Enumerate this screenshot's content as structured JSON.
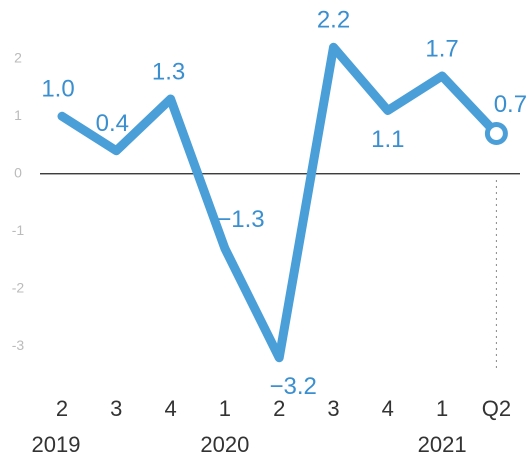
{
  "chart_data": {
    "type": "line",
    "categories": [
      "2",
      "3",
      "4",
      "1",
      "2",
      "3",
      "4",
      "1",
      "Q2"
    ],
    "years": [
      "2019",
      "2020",
      "2021"
    ],
    "series": [
      {
        "color": "#4a9fd8",
        "values": [
          1.0,
          0.4,
          1.3,
          -1.3,
          -3.2,
          2.2,
          1.1,
          1.7,
          0.7
        ],
        "value_labels": [
          "1.0",
          "0.4",
          "1.3",
          "−1.3",
          "−3.2",
          "2.2",
          "1.1",
          "1.7",
          "0.7"
        ]
      }
    ],
    "ylim": [
      -3.5,
      2.5
    ],
    "yticks": [
      2,
      1,
      0,
      -1,
      -2,
      -3
    ],
    "grid": false
  }
}
